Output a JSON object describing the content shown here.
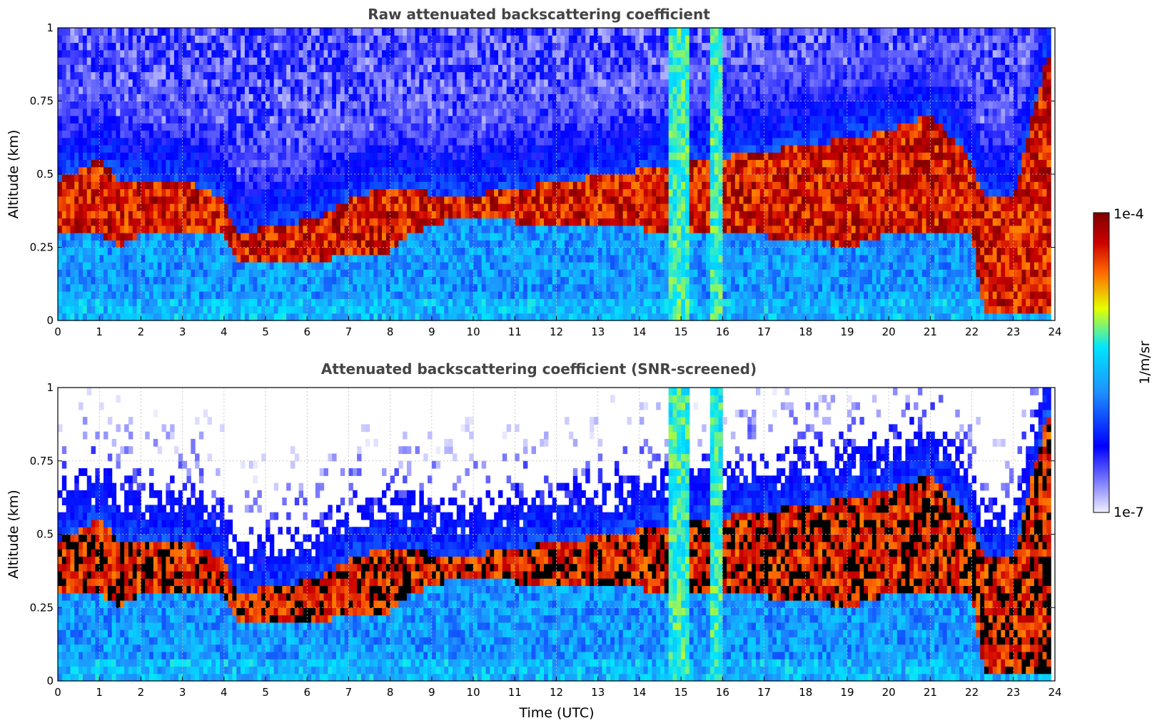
{
  "chart_data": [
    {
      "type": "heatmap",
      "title": "Raw attenuated backscattering coefficient",
      "xlabel": "",
      "ylabel": "Altitude (km)",
      "xlim": [
        0,
        24
      ],
      "ylim": [
        0,
        1
      ],
      "x_ticks": [
        "0",
        "1",
        "2",
        "3",
        "4",
        "5",
        "6",
        "7",
        "8",
        "9",
        "10",
        "11",
        "12",
        "13",
        "14",
        "15",
        "16",
        "17",
        "18",
        "19",
        "20",
        "21",
        "22",
        "23",
        "24"
      ],
      "y_ticks": [
        "0",
        "0.25",
        "0.5",
        "0.75",
        "1"
      ],
      "grid": true,
      "screened": false
    },
    {
      "type": "heatmap",
      "title": "Attenuated backscattering coefficient (SNR-screened)",
      "xlabel": "Time (UTC)",
      "ylabel": "Altitude (km)",
      "xlim": [
        0,
        24
      ],
      "ylim": [
        0,
        1
      ],
      "x_ticks": [
        "0",
        "1",
        "2",
        "3",
        "4",
        "5",
        "6",
        "7",
        "8",
        "9",
        "10",
        "11",
        "12",
        "13",
        "14",
        "15",
        "16",
        "17",
        "18",
        "19",
        "20",
        "21",
        "22",
        "23",
        "24"
      ],
      "y_ticks": [
        "0",
        "0.25",
        "0.5",
        "0.75",
        "1"
      ],
      "grid": true,
      "screened": true
    }
  ],
  "colorbar": {
    "label": "1/m/sr",
    "max_label": "1e-4",
    "min_label": "1e-7",
    "colormap": [
      "#f0f0ff",
      "#0000ff",
      "#1e90ff",
      "#00e5ff",
      "#e5ff00",
      "#ff6a00",
      "#cc0000",
      "#7f0000"
    ]
  },
  "cloud_layer_profile": {
    "time_utc": [
      0,
      1,
      1.5,
      2,
      3,
      4,
      4.3,
      6.3,
      6.8,
      7.8,
      8.5,
      9.5,
      18,
      19,
      20,
      21,
      22,
      22.3,
      23,
      23.8
    ],
    "cloud_base_km": [
      0.3,
      0.3,
      0.25,
      0.3,
      0.3,
      0.3,
      0.2,
      0.2,
      0.22,
      0.22,
      0.3,
      0.35,
      0.28,
      0.25,
      0.3,
      0.3,
      0.3,
      0.02,
      0.02,
      0.02
    ],
    "cloud_top_km": [
      0.48,
      0.55,
      0.48,
      0.48,
      0.48,
      0.42,
      0.3,
      0.35,
      0.4,
      0.45,
      0.45,
      0.42,
      0.6,
      0.62,
      0.65,
      0.7,
      0.55,
      0.42,
      0.42,
      0.9
    ]
  }
}
